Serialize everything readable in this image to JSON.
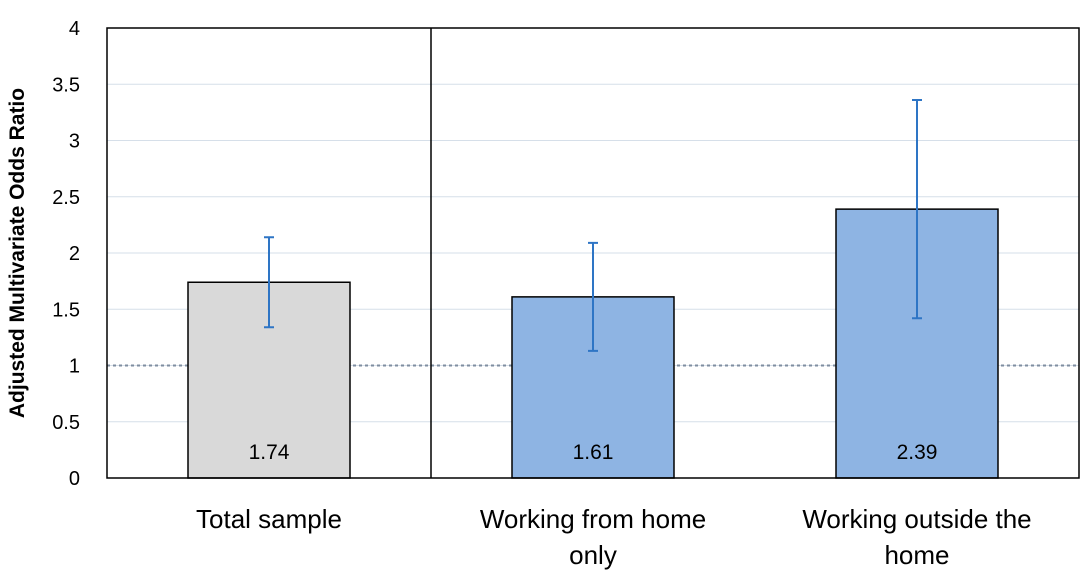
{
  "chart_data": {
    "type": "bar",
    "title": "",
    "xlabel": "",
    "ylabel": "Adjusted Multivariate Odds Ratio",
    "ylim": [
      0,
      4
    ],
    "yticks": [
      0,
      0.5,
      1,
      1.5,
      2,
      2.5,
      3,
      3.5,
      4
    ],
    "grid": true,
    "legend": "none",
    "reference_line": 1,
    "categories": [
      {
        "lines": [
          "Total sample"
        ]
      },
      {
        "lines": [
          "Working from home",
          "only"
        ]
      },
      {
        "lines": [
          "Working outside the",
          "home"
        ]
      }
    ],
    "values": [
      1.74,
      1.61,
      2.39
    ],
    "value_labels": [
      "1.74",
      "1.61",
      "2.39"
    ],
    "ci_lower": [
      1.34,
      1.13,
      1.42
    ],
    "ci_upper": [
      2.14,
      2.09,
      3.36
    ],
    "colors": {
      "bars": [
        "#d9d9d9",
        "#8eb4e3",
        "#8eb4e3"
      ],
      "error_bar": "#2e75c5",
      "gridline": "#d6dfe9",
      "reference_line": "#7f8ea0"
    }
  }
}
